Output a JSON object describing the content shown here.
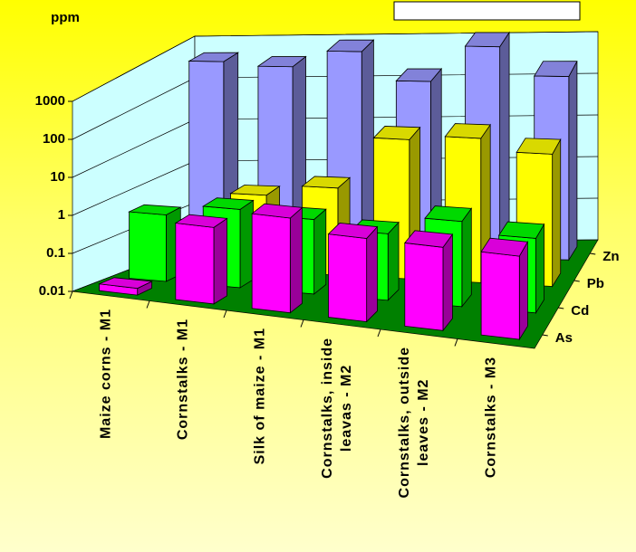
{
  "chart_data": {
    "type": "bar3d",
    "y_axis_label": "ppm",
    "yscale": "log",
    "categories": [
      "Maize corns - M1",
      "Cornstalks - M1",
      "Silk of maize - M1",
      "Cornstalks, inside\nleavas - M2",
      "Cornstalks, outside\nleaves - M2",
      "Cornstalks - M3"
    ],
    "series": [
      {
        "name": "As",
        "color": "#ff00ff",
        "values": [
          0.015,
          1,
          3,
          1.5,
          1.5,
          1.5
        ]
      },
      {
        "name": "Cd",
        "color": "#00ff00",
        "values": [
          0.5,
          1,
          0.8,
          0.5,
          1.5,
          0.8
        ]
      },
      {
        "name": "Pb",
        "color": "#ffff00",
        "values": [
          0.1,
          0.8,
          1.5,
          30,
          40,
          20
        ]
      },
      {
        "name": "Zn",
        "color": "#9999ff",
        "values": [
          500,
          400,
          1000,
          200,
          1500,
          300
        ]
      }
    ],
    "ylim": [
      0.01,
      1000
    ],
    "yticks": [
      0.01,
      0.1,
      1,
      10,
      100,
      1000
    ],
    "grid": true
  }
}
